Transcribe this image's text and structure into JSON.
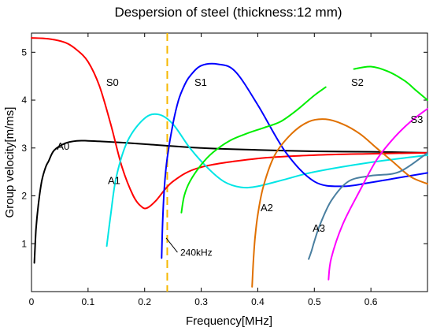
{
  "chart_data": {
    "type": "line",
    "title": "Despersion of steel  (thickness:12 mm)",
    "xlabel": "Frequency[MHz]",
    "ylabel": "Group velocity[m/ms]",
    "xlim": [
      0,
      0.7
    ],
    "ylim": [
      0,
      5.4
    ],
    "x_ticks": [
      "0",
      "0.1",
      "0.2",
      "0.3",
      "0.4",
      "0.5",
      "0.6"
    ],
    "x_tick_values": [
      0,
      0.1,
      0.2,
      0.3,
      0.4,
      0.5,
      0.6
    ],
    "y_ticks": [
      "1",
      "2",
      "3",
      "4",
      "5"
    ],
    "y_tick_values": [
      1,
      2,
      3,
      4,
      5
    ],
    "grid": false,
    "vertical_marker": {
      "x": 0.24,
      "color": "#f5b800",
      "label": "240kHz",
      "label_x": 0.263,
      "label_y": 0.75,
      "leader": [
        [
          0.238,
          1.12
        ],
        [
          0.258,
          0.82
        ]
      ]
    },
    "series": [
      {
        "name": "A0",
        "color": "#000000",
        "label_x": 0.045,
        "label_y": 2.96,
        "x": [
          0.005,
          0.008,
          0.012,
          0.018,
          0.025,
          0.03,
          0.04,
          0.06,
          0.08,
          0.1,
          0.15,
          0.2,
          0.3,
          0.4,
          0.5,
          0.6,
          0.7
        ],
        "y": [
          0.6,
          1.3,
          1.8,
          2.3,
          2.6,
          2.72,
          2.95,
          3.1,
          3.15,
          3.15,
          3.12,
          3.08,
          3.0,
          2.96,
          2.93,
          2.92,
          2.9
        ]
      },
      {
        "name": "S0",
        "color": "#ff0000",
        "label_x": 0.132,
        "label_y": 4.3,
        "x": [
          0.0,
          0.03,
          0.06,
          0.08,
          0.1,
          0.12,
          0.14,
          0.16,
          0.18,
          0.195,
          0.205,
          0.22,
          0.25,
          0.3,
          0.4,
          0.5,
          0.6,
          0.7
        ],
        "y": [
          5.3,
          5.28,
          5.2,
          5.05,
          4.8,
          4.3,
          3.5,
          2.6,
          2.0,
          1.77,
          1.75,
          1.9,
          2.3,
          2.6,
          2.78,
          2.85,
          2.88,
          2.9
        ]
      },
      {
        "name": "A1",
        "color": "#00e5e5",
        "label_x": 0.135,
        "label_y": 2.25,
        "x": [
          0.133,
          0.14,
          0.15,
          0.17,
          0.2,
          0.225,
          0.25,
          0.28,
          0.31,
          0.34,
          0.37,
          0.4,
          0.45,
          0.5,
          0.6,
          0.7
        ],
        "y": [
          0.95,
          1.6,
          2.4,
          3.15,
          3.62,
          3.7,
          3.5,
          3.0,
          2.6,
          2.3,
          2.18,
          2.2,
          2.35,
          2.5,
          2.7,
          2.85
        ]
      },
      {
        "name": "S1",
        "color": "#0000ff",
        "label_x": 0.288,
        "label_y": 4.3,
        "x": [
          0.23,
          0.232,
          0.235,
          0.24,
          0.25,
          0.26,
          0.27,
          0.28,
          0.3,
          0.33,
          0.36,
          0.4,
          0.45,
          0.5,
          0.55,
          0.6,
          0.65,
          0.7
        ],
        "y": [
          0.7,
          1.5,
          2.2,
          2.8,
          3.5,
          4.0,
          4.3,
          4.5,
          4.72,
          4.75,
          4.6,
          3.9,
          2.9,
          2.3,
          2.2,
          2.28,
          2.38,
          2.48
        ]
      },
      {
        "name": "S2",
        "color": "#00ee00",
        "label_x": 0.565,
        "label_y": 4.3,
        "x": [
          0.265,
          0.27,
          0.28,
          0.3,
          0.32,
          0.35,
          0.38,
          0.41,
          0.44,
          0.47,
          0.5,
          0.52
        ],
        "y": [
          1.65,
          2.0,
          2.3,
          2.65,
          2.9,
          3.15,
          3.3,
          3.42,
          3.55,
          3.8,
          4.1,
          4.27
        ]
      },
      {
        "name": "S2_upper",
        "color": "#00ee00",
        "x": [
          0.57,
          0.6,
          0.63,
          0.66,
          0.68,
          0.7
        ],
        "y": [
          4.65,
          4.7,
          4.6,
          4.4,
          4.2,
          4.0
        ]
      },
      {
        "name": "A2",
        "color": "#e07000",
        "label_x": 0.405,
        "label_y": 1.68,
        "x": [
          0.39,
          0.392,
          0.395,
          0.4,
          0.41,
          0.43,
          0.46,
          0.49,
          0.52,
          0.55,
          0.58,
          0.61,
          0.64,
          0.67,
          0.7
        ],
        "y": [
          0.1,
          0.6,
          1.1,
          1.6,
          2.2,
          2.85,
          3.3,
          3.55,
          3.6,
          3.5,
          3.3,
          3.0,
          2.7,
          2.4,
          2.25
        ]
      },
      {
        "name": "A3",
        "color": "#4a7fa0",
        "label_x": 0.497,
        "label_y": 1.25,
        "x": [
          0.49,
          0.495,
          0.5,
          0.51,
          0.53,
          0.56,
          0.6,
          0.65,
          0.7
        ],
        "y": [
          0.68,
          0.85,
          1.05,
          1.4,
          1.9,
          2.3,
          2.42,
          2.5,
          2.9
        ]
      },
      {
        "name": "S3",
        "color": "#ff00ff",
        "label_x": 0.67,
        "label_y": 3.52,
        "x": [
          0.525,
          0.53,
          0.55,
          0.58,
          0.61,
          0.64,
          0.67,
          0.7
        ],
        "y": [
          0.25,
          0.7,
          1.4,
          2.1,
          2.75,
          3.2,
          3.55,
          3.82
        ]
      }
    ]
  }
}
